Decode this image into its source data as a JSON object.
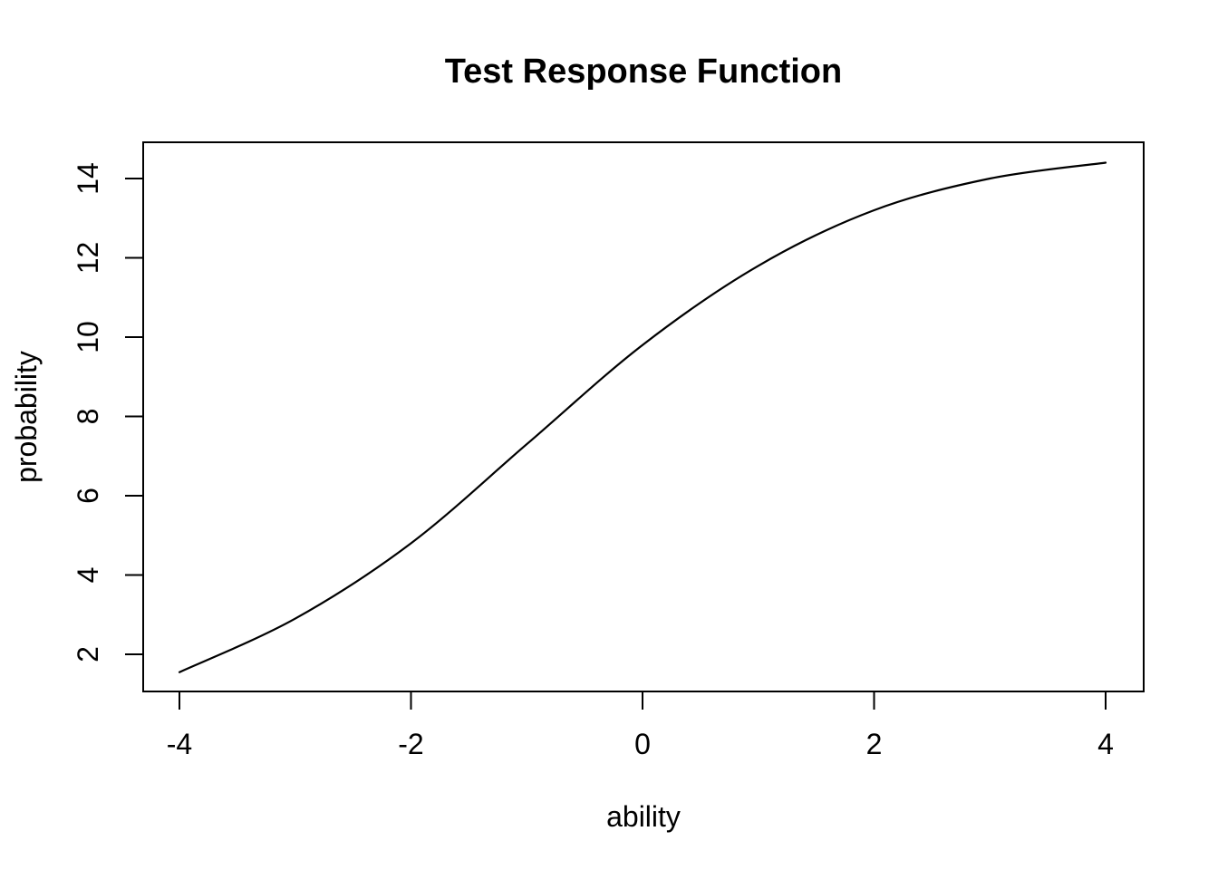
{
  "chart_data": {
    "type": "line",
    "title": "Test Response Function",
    "xlabel": "ability",
    "ylabel": "probability",
    "x_ticks": [
      -4,
      -2,
      0,
      2,
      4
    ],
    "y_ticks": [
      2,
      4,
      6,
      8,
      10,
      12,
      14
    ],
    "xlim": [
      -4.34,
      4.34
    ],
    "ylim": [
      1.05,
      14.9
    ],
    "grid": false,
    "legend": null,
    "series": [
      {
        "name": "test-response-function",
        "x": [
          -4,
          -3,
          -2,
          -1,
          0,
          1,
          2,
          3,
          4
        ],
        "y": [
          1.55,
          2.9,
          4.8,
          7.3,
          9.8,
          11.8,
          13.2,
          14.0,
          14.4
        ],
        "color": "#000000",
        "line_width": 2.2
      }
    ]
  },
  "colors": {
    "background": "#ffffff",
    "foreground": "#000000"
  }
}
